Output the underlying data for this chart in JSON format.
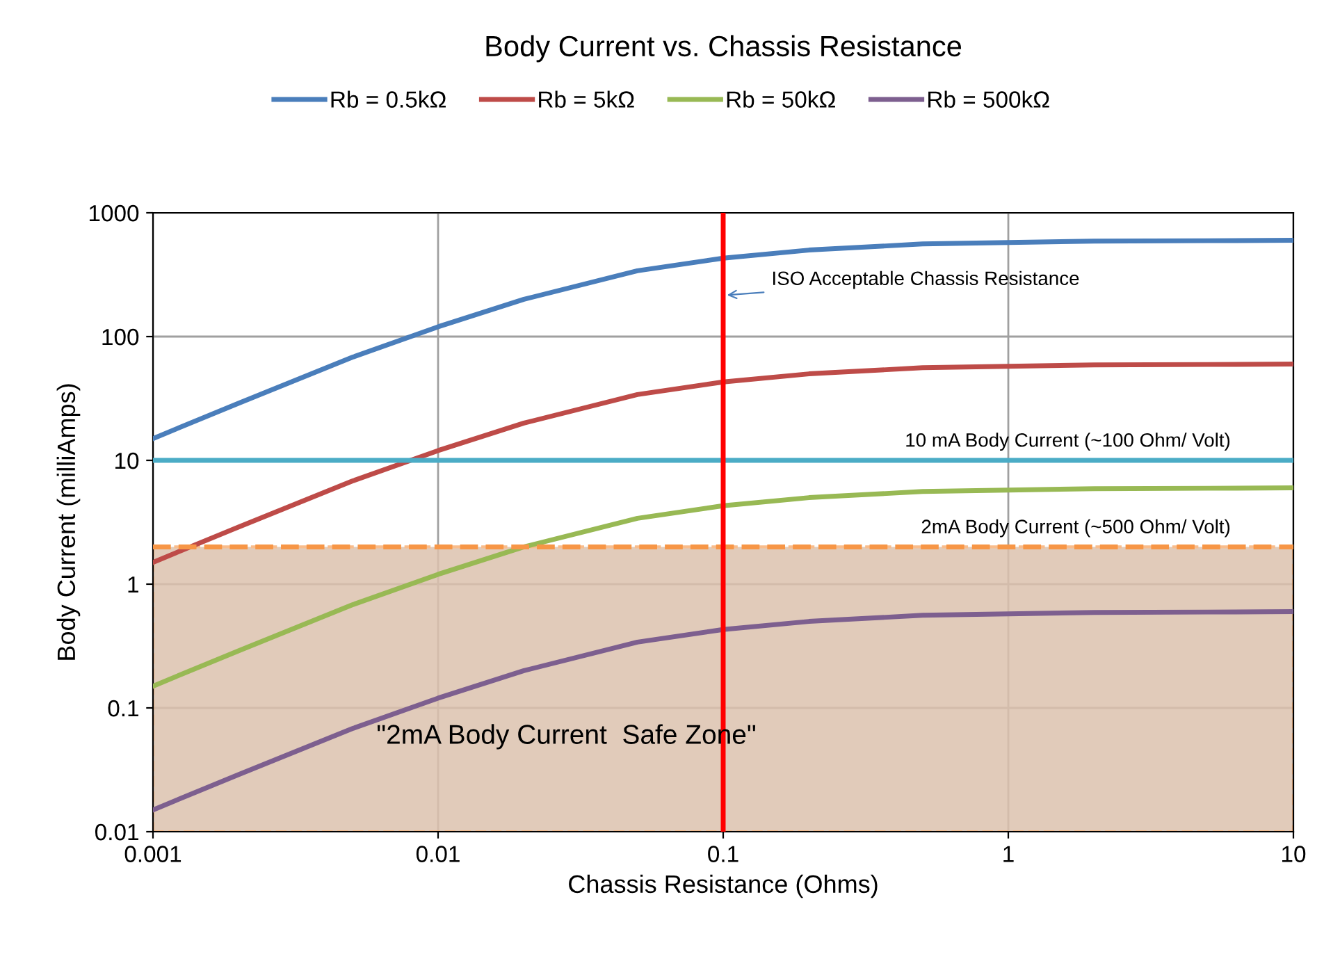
{
  "chart_data": {
    "type": "line",
    "title": "Body Current vs. Chassis Resistance",
    "xlabel": "Chassis Resistance (Ohms)",
    "ylabel": "Body Current (milliAmps)",
    "x": [
      0.001,
      0.002,
      0.005,
      0.01,
      0.02,
      0.05,
      0.1,
      0.2,
      0.5,
      1,
      2,
      5,
      10
    ],
    "series": [
      {
        "name": "Rb = 0.5kΩ",
        "color": "#4a7ebb",
        "values": [
          15,
          29,
          68,
          120,
          200,
          340,
          430,
          500,
          560,
          575,
          590,
          595,
          600
        ]
      },
      {
        "name": "Rb = 5kΩ",
        "color": "#be4b48",
        "values": [
          1.5,
          2.9,
          6.8,
          12,
          20,
          34,
          43,
          50,
          56,
          57.5,
          59,
          59.5,
          60
        ]
      },
      {
        "name": "Rb = 50kΩ",
        "color": "#98b954",
        "values": [
          0.15,
          0.29,
          0.68,
          1.2,
          2.0,
          3.4,
          4.3,
          5.0,
          5.6,
          5.75,
          5.9,
          5.95,
          6.0
        ]
      },
      {
        "name": "Rb = 500kΩ",
        "color": "#7d5f8f",
        "values": [
          0.015,
          0.029,
          0.068,
          0.12,
          0.2,
          0.34,
          0.43,
          0.5,
          0.56,
          0.575,
          0.59,
          0.595,
          0.6
        ]
      }
    ],
    "log": "xy",
    "xlim": [
      0.001,
      10
    ],
    "ylim": [
      0.01,
      1000
    ],
    "xticks": [
      0.001,
      0.01,
      0.1,
      1,
      10
    ],
    "yticks": [
      0.01,
      0.1,
      1,
      10,
      100,
      1000
    ],
    "grid": true,
    "legend": "top",
    "marker": "none",
    "line_style": "solid",
    "ref_lines": [
      {
        "axis": "y",
        "value": 10,
        "label": "10 mA Body Current (~100 Ohm/ Volt)",
        "color": "#4bacc6",
        "line_style": "solid"
      },
      {
        "axis": "y",
        "value": 2,
        "label": "2mA Body Current (~500 Ohm/ Volt)",
        "color": "#f79646",
        "line_style": "dashed"
      },
      {
        "axis": "x",
        "value": 0.1,
        "color": "#ff0000",
        "line_style": "solid"
      }
    ],
    "bands": [
      {
        "axis": "y",
        "from": 0.01,
        "to": 2,
        "label": "\"2mA Body Current  Safe Zone\"",
        "color": "#dcc2ae"
      }
    ],
    "annotations": [
      {
        "text": "ISO Acceptable Chassis Resistance",
        "x": 0.1,
        "y": 215
      }
    ]
  }
}
